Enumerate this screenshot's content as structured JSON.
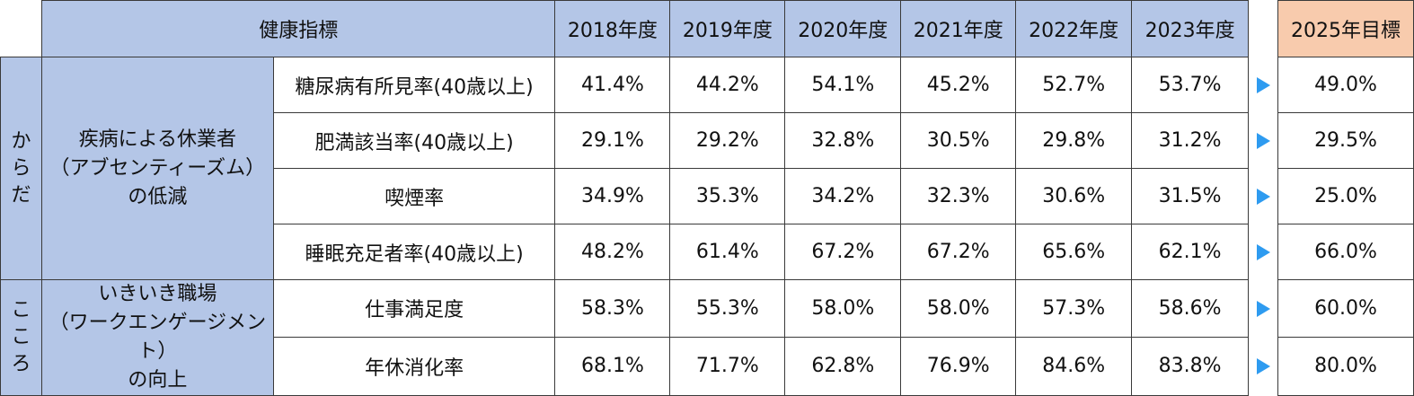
{
  "header": {
    "indicator": "健康指標",
    "years": [
      "2018年度",
      "2019年度",
      "2020年度",
      "2021年度",
      "2022年度",
      "2023年度"
    ],
    "target": "2025年目標"
  },
  "groups": [
    {
      "category_chars": [
        "か",
        "ら",
        "だ"
      ],
      "goal_lines": [
        "疾病による休業者",
        "（アブセンティーズム）",
        "の低減"
      ]
    },
    {
      "category_chars": [
        "こ",
        "こ",
        "ろ"
      ],
      "goal_lines": [
        "いきいき職場",
        "（ワークエンゲージメント）",
        "の向上"
      ]
    }
  ],
  "rows": [
    {
      "label": "糖尿病有所見率(40歳以上)",
      "values": [
        "41.4%",
        "44.2%",
        "54.1%",
        "45.2%",
        "52.7%",
        "53.7%"
      ],
      "target": "49.0%"
    },
    {
      "label": "肥満該当率(40歳以上)",
      "values": [
        "29.1%",
        "29.2%",
        "32.8%",
        "30.5%",
        "29.8%",
        "31.2%"
      ],
      "target": "29.5%"
    },
    {
      "label": "喫煙率",
      "values": [
        "34.9%",
        "35.3%",
        "34.2%",
        "32.3%",
        "30.6%",
        "31.5%"
      ],
      "target": "25.0%"
    },
    {
      "label": "睡眠充足者率(40歳以上)",
      "values": [
        "48.2%",
        "61.4%",
        "67.2%",
        "67.2%",
        "65.6%",
        "62.1%"
      ],
      "target": "66.0%"
    },
    {
      "label": "仕事満足度",
      "values": [
        "58.3%",
        "55.3%",
        "58.0%",
        "58.0%",
        "57.3%",
        "58.6%"
      ],
      "target": "60.0%"
    },
    {
      "label": "年休消化率",
      "values": [
        "68.1%",
        "71.7%",
        "62.8%",
        "76.9%",
        "84.6%",
        "83.8%"
      ],
      "target": "80.0%"
    }
  ],
  "colors": {
    "header_bg": "#b4c6e7",
    "target_header_bg": "#f8cbad",
    "arrow": "#2e9bf0"
  },
  "icons": {
    "row_arrow": "triangle-right-icon"
  }
}
